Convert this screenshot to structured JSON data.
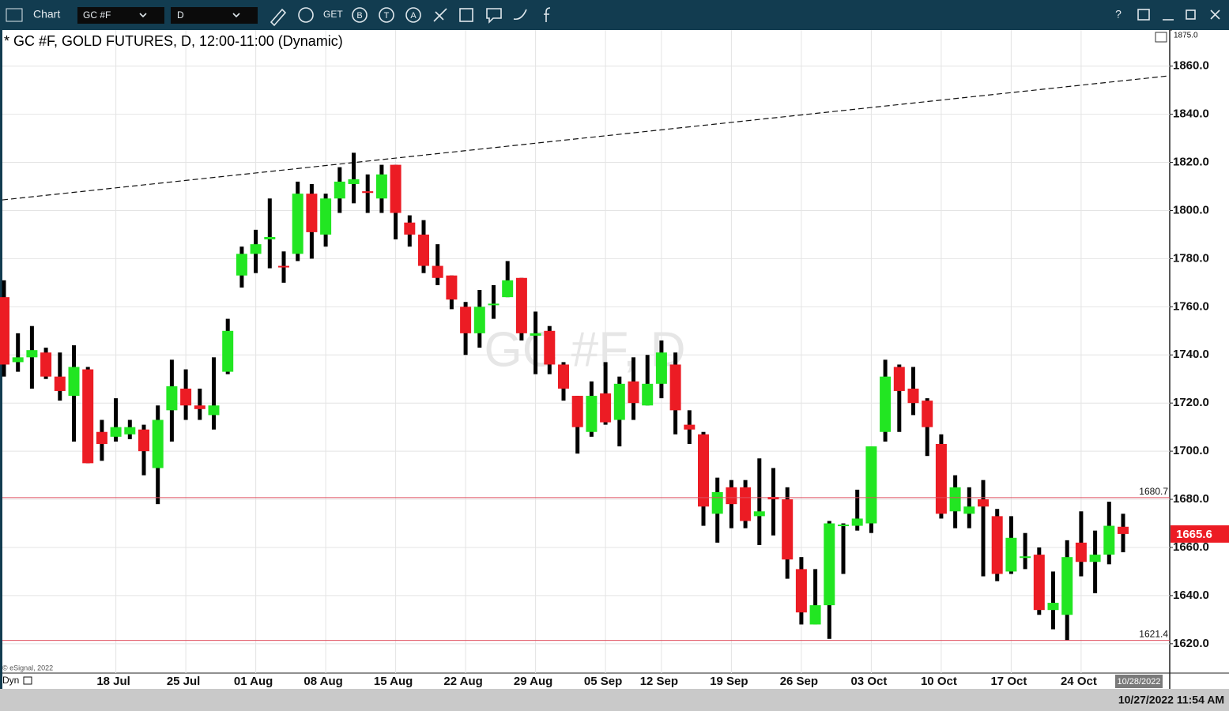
{
  "toolbar": {
    "app": "Chart",
    "symbol": "GC #F",
    "interval": "D",
    "get": "GET",
    "icons": [
      "B",
      "T",
      "A"
    ],
    "help": "?"
  },
  "chart_data": {
    "type": "candlestick",
    "title": "* GC #F, GOLD FUTURES, D, 12:00-11:00 (Dynamic)",
    "watermark": "GC #F, D",
    "copyright": "© eSignal, 2022",
    "mode": "Dyn",
    "x_axis_end_label": "10/28/2022",
    "status_time": "10/27/2022 11:54 AM",
    "up_color": "#22e622",
    "down_color": "#ec1c24",
    "grid": true,
    "categories": [
      null,
      null,
      null,
      null,
      null,
      null,
      null,
      null,
      "18 Jul",
      null,
      null,
      null,
      null,
      "25 Jul",
      null,
      null,
      null,
      null,
      "01 Aug",
      null,
      null,
      null,
      null,
      "08 Aug",
      null,
      null,
      null,
      null,
      "15 Aug",
      null,
      null,
      null,
      null,
      "22 Aug",
      null,
      null,
      null,
      null,
      "29 Aug",
      null,
      null,
      null,
      null,
      "05 Sep",
      null,
      null,
      null,
      "12 Sep",
      null,
      null,
      null,
      null,
      "19 Sep",
      null,
      null,
      null,
      null,
      "26 Sep",
      null,
      null,
      null,
      null,
      "03 Oct",
      null,
      null,
      null,
      null,
      "10 Oct",
      null,
      null,
      null,
      null,
      "17 Oct",
      null,
      null,
      null,
      null,
      "24 Oct",
      null,
      null,
      null
    ],
    "open": [
      1764,
      1737,
      1739,
      1741,
      1731,
      1723,
      1734,
      1708,
      1706,
      1707,
      1709,
      1693,
      1717,
      1726,
      1719,
      1715,
      1733,
      1773,
      1782,
      1788,
      1777,
      1782,
      1807,
      1790,
      1805,
      1811,
      1808,
      1805,
      1819,
      1795,
      1790,
      1777,
      1773,
      1760,
      1749,
      1760.9,
      1764,
      1772,
      1748,
      1750,
      1736,
      1723,
      1708,
      1724,
      1713,
      1729,
      1719,
      1728,
      1736,
      1711,
      1707,
      1674,
      1685,
      1685,
      1673,
      1681,
      1680,
      1651,
      1628,
      1636,
      1669,
      1669,
      1670,
      1708,
      1735,
      1726,
      1721,
      1703,
      1675,
      1674,
      1680,
      1673,
      1650,
      1655.8,
      1657,
      1634,
      1632,
      1662,
      1654,
      1657,
      1668.6
    ],
    "high": [
      1771,
      1749,
      1752,
      1743,
      1741,
      1744,
      1735,
      1713,
      1722,
      1713,
      1711,
      1719,
      1738,
      1734,
      1726,
      1739,
      1755,
      1785,
      1792,
      1805,
      1783,
      1812,
      1811,
      1807,
      1818,
      1824,
      1815,
      1819,
      1819,
      1798,
      1796,
      1786,
      1773,
      1762,
      1767,
      1769,
      1779,
      1772,
      1758,
      1752,
      1737,
      1723,
      1729,
      1737,
      1731,
      1739,
      1740,
      1746,
      1741,
      1717,
      1708,
      1689,
      1688,
      1688,
      1697,
      1693,
      1685,
      1656,
      1651,
      1671,
      1670,
      1684,
      1702,
      1738,
      1736,
      1735,
      1722,
      1707,
      1690,
      1685,
      1688,
      1676,
      1673,
      1666,
      1660,
      1650,
      1663,
      1675,
      1667,
      1679,
      1674
    ],
    "low": [
      1731,
      1733,
      1726,
      1730,
      1721,
      1704,
      1695,
      1696,
      1704,
      1705,
      1690,
      1678,
      1704,
      1713,
      1713,
      1709,
      1732,
      1768,
      1774,
      1776,
      1770,
      1779,
      1780,
      1785,
      1799,
      1803,
      1799,
      1799,
      1788,
      1785,
      1774,
      1769,
      1759,
      1740,
      1743,
      1755,
      1764,
      1746,
      1732,
      1732,
      1721,
      1699,
      1706,
      1711,
      1702,
      1713,
      1719,
      1722,
      1707,
      1703,
      1669,
      1662,
      1668,
      1668,
      1661,
      1665,
      1647,
      1628,
      1628,
      1622,
      1649,
      1667,
      1666,
      1704,
      1708,
      1715,
      1698,
      1672,
      1668,
      1668,
      1648,
      1646,
      1649,
      1651,
      1632,
      1626,
      1621.4,
      1648,
      1641,
      1653,
      1658
    ],
    "close": [
      1736,
      1739,
      1742,
      1731,
      1725,
      1735,
      1695,
      1703,
      1710,
      1710,
      1700,
      1713,
      1727,
      1719,
      1717.5,
      1719,
      1750,
      1782,
      1786,
      1789,
      1776.4,
      1807,
      1791,
      1805,
      1812,
      1813,
      1807.3,
      1815,
      1799,
      1790,
      1777,
      1772,
      1763,
      1749,
      1760,
      1761.3,
      1771,
      1749,
      1749,
      1736,
      1726,
      1710,
      1723,
      1712,
      1728,
      1720,
      1728,
      1741,
      1717,
      1709,
      1677,
      1683,
      1678,
      1671,
      1675,
      1680,
      1655,
      1633,
      1636,
      1670,
      1669.5,
      1672,
      1702,
      1731,
      1725,
      1720,
      1710,
      1674,
      1685,
      1677,
      1677,
      1649,
      1664,
      1656.3,
      1634,
      1637,
      1656,
      1654,
      1657,
      1669,
      1665.6
    ],
    "ylim": [
      1607.8,
      1875.0
    ],
    "yticks": [
      {
        "value": 1620,
        "label": "1620.0"
      },
      {
        "value": 1640,
        "label": "1640.0"
      },
      {
        "value": 1660,
        "label": "1660.0"
      },
      {
        "value": 1680,
        "label": "1680.0"
      },
      {
        "value": 1700,
        "label": "1700.0"
      },
      {
        "value": 1720,
        "label": "1720.0"
      },
      {
        "value": 1740,
        "label": "1740.0"
      },
      {
        "value": 1760,
        "label": "1760.0"
      },
      {
        "value": 1780,
        "label": "1780.0"
      },
      {
        "value": 1800,
        "label": "1800.0"
      },
      {
        "value": 1820,
        "label": "1820.0"
      },
      {
        "value": 1840,
        "label": "1840.0"
      },
      {
        "value": 1860,
        "label": "1860.0"
      }
    ],
    "top_label": {
      "value": 1875,
      "label": "1875.0"
    },
    "levels": [
      1680.7,
      1621.4
    ],
    "level_color": "#e05060",
    "last_price": 1665.6,
    "trendline": {
      "start": 1804.4,
      "end": 1856.0
    }
  }
}
